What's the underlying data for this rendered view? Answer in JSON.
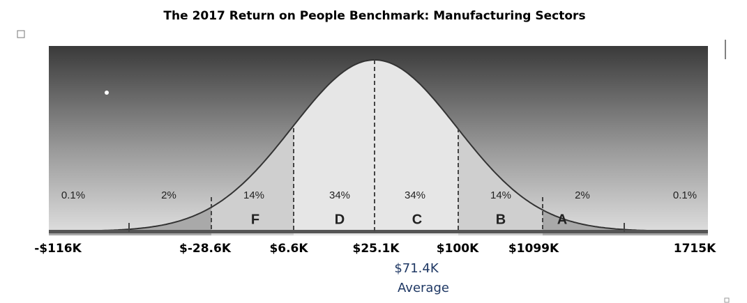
{
  "title": "The 2017 Return on People Benchmark:  Manufacturing Sectors",
  "segments": [
    {
      "percent": "0.1%"
    },
    {
      "percent": "2%"
    },
    {
      "percent": "14%",
      "grade": "F"
    },
    {
      "percent": "34%",
      "grade": "D"
    },
    {
      "percent": "34%",
      "grade": "C"
    },
    {
      "percent": "14%",
      "grade": "B"
    },
    {
      "percent": "2%",
      "grade": "A"
    },
    {
      "percent": "0.1%"
    }
  ],
  "axis_labels": [
    "-$116K",
    "$-28.6K",
    "$6.6K",
    "$25.1K",
    "$100K",
    "$1099K",
    "1715K"
  ],
  "average": {
    "value": "$71.4K",
    "label": "Average"
  }
}
